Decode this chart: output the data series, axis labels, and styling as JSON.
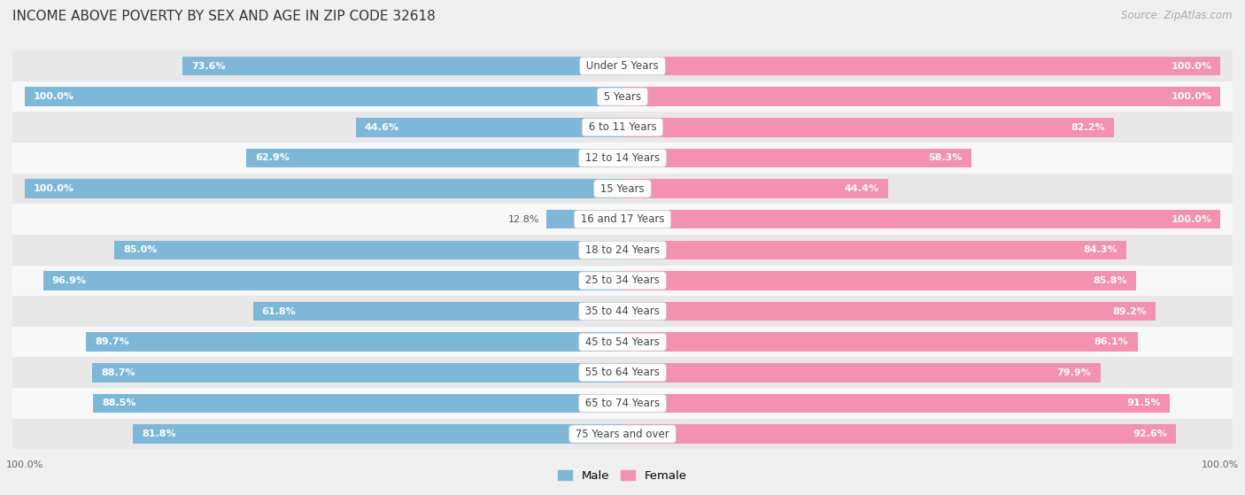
{
  "title": "INCOME ABOVE POVERTY BY SEX AND AGE IN ZIP CODE 32618",
  "source": "Source: ZipAtlas.com",
  "categories": [
    "Under 5 Years",
    "5 Years",
    "6 to 11 Years",
    "12 to 14 Years",
    "15 Years",
    "16 and 17 Years",
    "18 to 24 Years",
    "25 to 34 Years",
    "35 to 44 Years",
    "45 to 54 Years",
    "55 to 64 Years",
    "65 to 74 Years",
    "75 Years and over"
  ],
  "male_values": [
    73.6,
    100.0,
    44.6,
    62.9,
    100.0,
    12.8,
    85.0,
    96.9,
    61.8,
    89.7,
    88.7,
    88.5,
    81.8
  ],
  "female_values": [
    100.0,
    100.0,
    82.2,
    58.3,
    44.4,
    100.0,
    84.3,
    85.8,
    89.2,
    86.1,
    79.9,
    91.5,
    92.6
  ],
  "male_color": "#7eb8d9",
  "female_color": "#f490b0",
  "male_label": "Male",
  "female_label": "Female",
  "bg_color": "#f0f0f0",
  "row_bg_even": "#e8e8e8",
  "row_bg_odd": "#f8f8f8",
  "title_fontsize": 11,
  "label_fontsize": 8.5,
  "value_fontsize": 8,
  "source_fontsize": 8.5,
  "bar_height": 0.62
}
